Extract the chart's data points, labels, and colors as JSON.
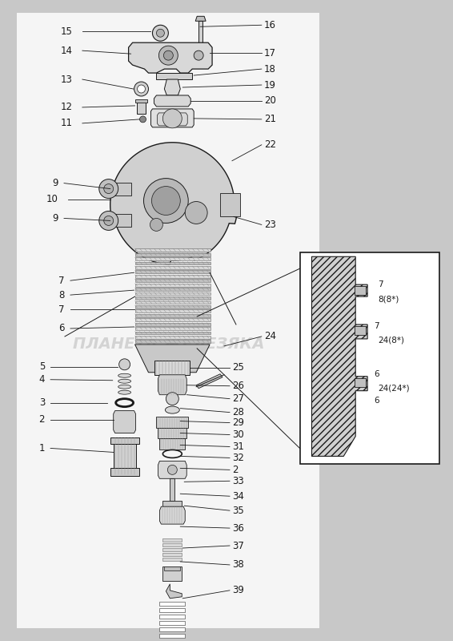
{
  "bg_color": "#c8c8c8",
  "line_color": "#1a1a1a",
  "fig_width": 5.66,
  "fig_height": 8.0,
  "dpi": 100,
  "watermark_text": "ПЛАНЕТА ЖЕЛЕЗЯКА",
  "watermark_color": "#b8b8b8",
  "watermark_alpha": 0.55
}
